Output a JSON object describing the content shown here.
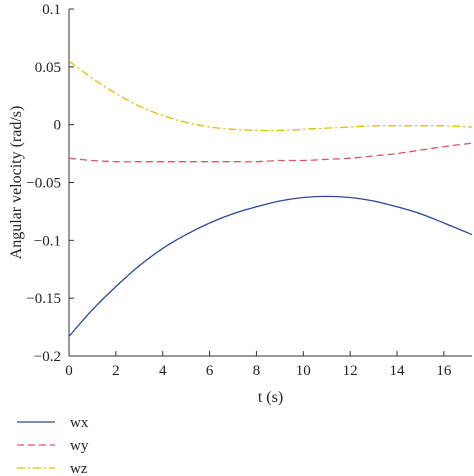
{
  "chart_data": {
    "type": "line",
    "xlabel": "t (s)",
    "ylabel": "Angular velocity (rad/s)",
    "xlim": [
      0,
      17.2
    ],
    "ylim": [
      -0.2,
      0.1
    ],
    "xticks": [
      0,
      2,
      4,
      6,
      8,
      10,
      12,
      14,
      16
    ],
    "xtick_labels": [
      "0",
      "2",
      "4",
      "6",
      "8",
      "10",
      "12",
      "14",
      "16"
    ],
    "yticks": [
      0.1,
      0.05,
      0,
      -0.05,
      -0.1,
      -0.15,
      -0.2
    ],
    "ytick_labels": [
      "0.1",
      "0.05",
      "0",
      "−0.05",
      "−0.1",
      "−0.15",
      "−0.2"
    ],
    "grid": false,
    "legend_placement": "below",
    "series": [
      {
        "name": "wx",
        "color": "#2b4a9a",
        "style": "solid",
        "x": [
          0,
          1,
          2,
          3,
          4,
          5,
          6,
          7,
          8,
          9,
          10,
          11,
          12,
          13,
          14,
          15,
          16,
          17.2
        ],
        "y": [
          -0.183,
          -0.16,
          -0.14,
          -0.122,
          -0.107,
          -0.095,
          -0.085,
          -0.077,
          -0.071,
          -0.066,
          -0.063,
          -0.062,
          -0.063,
          -0.066,
          -0.071,
          -0.077,
          -0.085,
          -0.095
        ]
      },
      {
        "name": "wy",
        "color": "#d9536a",
        "style": "dashed",
        "x": [
          0,
          1,
          2,
          3,
          4,
          5,
          6,
          7,
          8,
          9,
          10,
          11,
          12,
          13,
          14,
          15,
          16,
          17.2
        ],
        "y": [
          -0.029,
          -0.031,
          -0.032,
          -0.032,
          -0.032,
          -0.032,
          -0.032,
          -0.032,
          -0.032,
          -0.031,
          -0.031,
          -0.03,
          -0.029,
          -0.027,
          -0.025,
          -0.022,
          -0.019,
          -0.016
        ]
      },
      {
        "name": "wz",
        "color": "#d4c400",
        "style": "dashdot",
        "x": [
          0,
          1,
          2,
          3,
          4,
          5,
          6,
          7,
          8,
          9,
          10,
          11,
          12,
          13,
          14,
          15,
          16,
          17.2
        ],
        "y": [
          0.055,
          0.04,
          0.027,
          0.016,
          0.008,
          0.002,
          -0.002,
          -0.004,
          -0.005,
          -0.005,
          -0.004,
          -0.003,
          -0.002,
          -0.001,
          -0.001,
          -0.001,
          -0.001,
          -0.002
        ]
      }
    ]
  }
}
